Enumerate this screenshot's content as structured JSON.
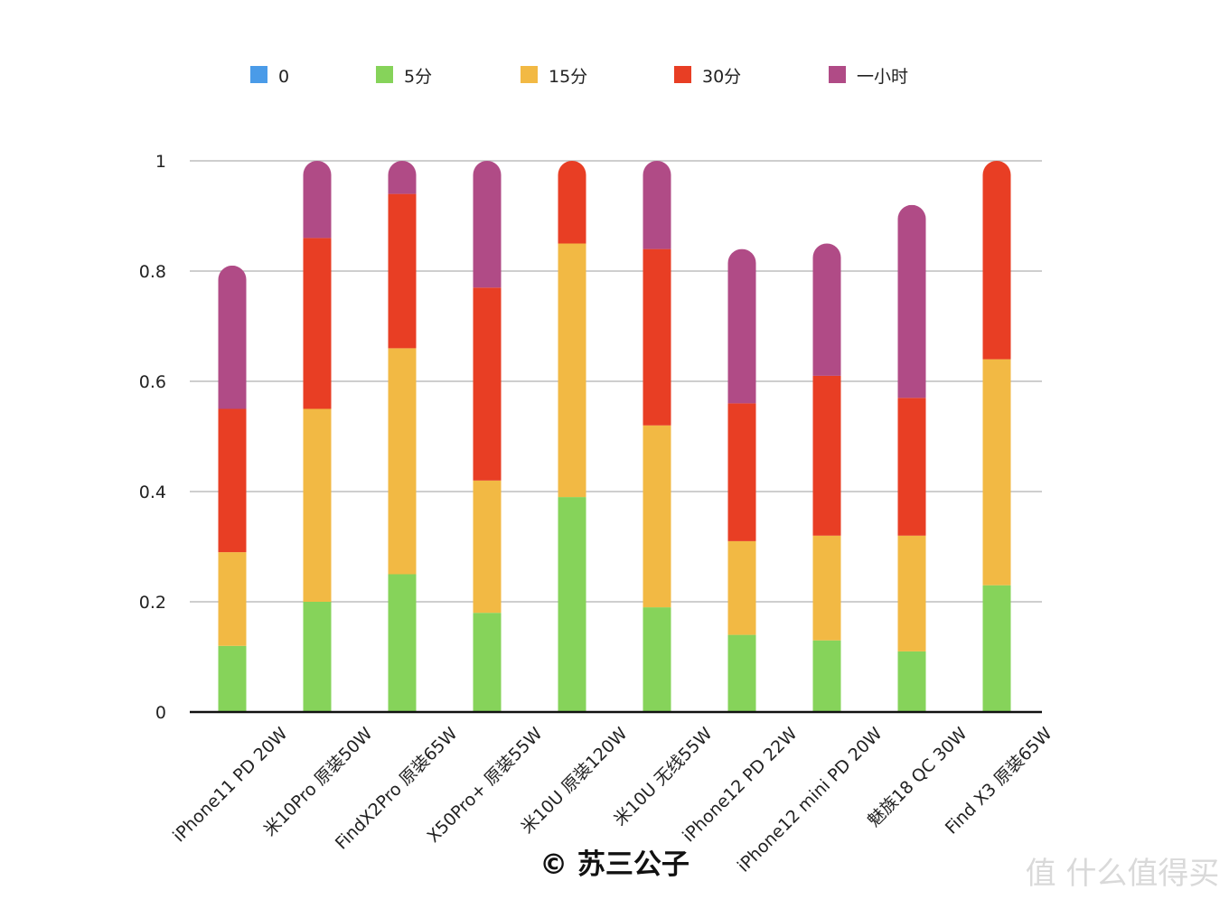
{
  "chart_data": {
    "type": "bar",
    "stacked": true,
    "title": "",
    "xlabel": "",
    "ylabel": "",
    "ylim": [
      0,
      1
    ],
    "y_ticks": [
      0,
      0.2,
      0.4,
      0.6,
      0.8,
      1
    ],
    "y_tick_labels": [
      "0",
      "0.2",
      "0.4",
      "0.6",
      "0.8",
      "1"
    ],
    "grid": true,
    "legend_position": "top",
    "categories": [
      "iPhone11 PD 20W",
      "米10Pro 原装50W",
      "FindX2Pro 原装65W",
      "X50Pro+ 原装55W",
      "米10U 原装120W",
      "米10U 无线55W",
      "iPhone12 PD 22W",
      "iPhone12 mini PD 20W",
      "魅族18 QC 30W",
      "Find X3 原装65W"
    ],
    "series": [
      {
        "name": "0",
        "color": "#4a9be8",
        "values": [
          0,
          0,
          0,
          0,
          0,
          0,
          0,
          0,
          0,
          0
        ]
      },
      {
        "name": "5分",
        "color": "#86d35a",
        "values": [
          0.12,
          0.2,
          0.25,
          0.18,
          0.39,
          0.19,
          0.14,
          0.13,
          0.11,
          0.23
        ]
      },
      {
        "name": "15分",
        "color": "#f2b944",
        "values": [
          0.17,
          0.35,
          0.41,
          0.24,
          0.46,
          0.33,
          0.17,
          0.19,
          0.21,
          0.41
        ]
      },
      {
        "name": "30分",
        "color": "#e83e24",
        "values": [
          0.26,
          0.31,
          0.28,
          0.35,
          0.15,
          0.32,
          0.25,
          0.29,
          0.25,
          0.36
        ]
      },
      {
        "name": "一小时",
        "color": "#b04b86",
        "values": [
          0.26,
          0.14,
          0.06,
          0.23,
          0,
          0.16,
          0.28,
          0.24,
          0.35,
          0
        ]
      }
    ]
  },
  "watermark": {
    "copyright_symbol": "©",
    "author": "苏三公子",
    "site": "值 什么值得买"
  }
}
